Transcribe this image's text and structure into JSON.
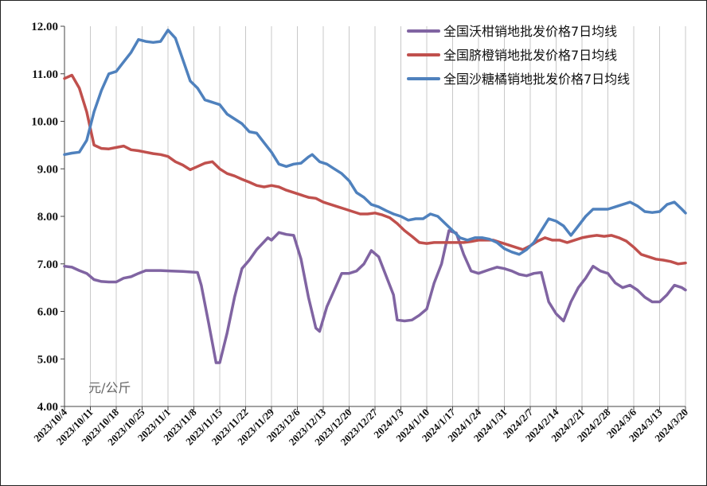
{
  "chart_data": {
    "type": "line",
    "unit_label": "元/公斤",
    "ylim": [
      4.0,
      12.0
    ],
    "yticks": [
      "4.00",
      "5.00",
      "6.00",
      "7.00",
      "8.00",
      "9.00",
      "10.00",
      "11.00",
      "12.00"
    ],
    "grid": "vertical",
    "legend_position": "top-right",
    "x_tick_labels": [
      "2023/10/4",
      "2023/10/11",
      "2023/10/18",
      "2023/10/25",
      "2023/11/1",
      "2023/11/8",
      "2023/11/15",
      "2023/11/22",
      "2023/11/29",
      "2023/12/6",
      "2023/12/13",
      "2023/12/20",
      "2023/12/27",
      "2024/1/3",
      "2024/1/10",
      "2024/1/17",
      "2024/1/24",
      "2024/1/31",
      "2024/2/7",
      "2024/2/14",
      "2024/2/21",
      "2024/2/28",
      "2024/3/6",
      "2024/3/13",
      "2024/3/20"
    ],
    "x_start": "2023/10/4",
    "x_end": "2024/3/20",
    "series": [
      {
        "name": "全国沃柑销地批发价格7日均线",
        "color": "#8064a2",
        "points": [
          [
            "2023/10/4",
            6.95
          ],
          [
            "2023/10/6",
            6.93
          ],
          [
            "2023/10/8",
            6.86
          ],
          [
            "2023/10/10",
            6.8
          ],
          [
            "2023/10/12",
            6.67
          ],
          [
            "2023/10/14",
            6.63
          ],
          [
            "2023/10/16",
            6.62
          ],
          [
            "2023/10/18",
            6.62
          ],
          [
            "2023/10/20",
            6.7
          ],
          [
            "2023/10/22",
            6.73
          ],
          [
            "2023/10/24",
            6.8
          ],
          [
            "2023/10/26",
            6.86
          ],
          [
            "2023/10/28",
            6.86
          ],
          [
            "2023/10/30",
            6.86
          ],
          [
            "2023/11/2",
            6.85
          ],
          [
            "2023/11/5",
            6.84
          ],
          [
            "2023/11/7",
            6.83
          ],
          [
            "2023/11/9",
            6.82
          ],
          [
            "2023/11/10",
            6.55
          ],
          [
            "2023/11/12",
            5.75
          ],
          [
            "2023/11/14",
            4.92
          ],
          [
            "2023/11/15",
            4.92
          ],
          [
            "2023/11/17",
            5.55
          ],
          [
            "2023/11/19",
            6.3
          ],
          [
            "2023/11/21",
            6.9
          ],
          [
            "2023/11/23",
            7.08
          ],
          [
            "2023/11/25",
            7.3
          ],
          [
            "2023/11/28",
            7.55
          ],
          [
            "2023/11/29",
            7.5
          ],
          [
            "2023/12/1",
            7.66
          ],
          [
            "2023/12/3",
            7.62
          ],
          [
            "2023/12/5",
            7.6
          ],
          [
            "2023/12/7",
            7.1
          ],
          [
            "2023/12/9",
            6.3
          ],
          [
            "2023/12/11",
            5.65
          ],
          [
            "2023/12/12",
            5.58
          ],
          [
            "2023/12/14",
            6.1
          ],
          [
            "2023/12/16",
            6.45
          ],
          [
            "2023/12/18",
            6.8
          ],
          [
            "2023/12/20",
            6.8
          ],
          [
            "2023/12/22",
            6.85
          ],
          [
            "2023/12/24",
            7.0
          ],
          [
            "2023/12/26",
            7.28
          ],
          [
            "2023/12/28",
            7.15
          ],
          [
            "2023/12/30",
            6.75
          ],
          [
            "2024/1/1",
            6.35
          ],
          [
            "2024/1/2",
            5.82
          ],
          [
            "2024/1/4",
            5.8
          ],
          [
            "2024/1/6",
            5.82
          ],
          [
            "2024/1/8",
            5.92
          ],
          [
            "2024/1/10",
            6.05
          ],
          [
            "2024/1/12",
            6.6
          ],
          [
            "2024/1/14",
            7.0
          ],
          [
            "2024/1/16",
            7.7
          ],
          [
            "2024/1/18",
            7.65
          ],
          [
            "2024/1/20",
            7.2
          ],
          [
            "2024/1/22",
            6.85
          ],
          [
            "2024/1/24",
            6.8
          ],
          [
            "2024/1/27",
            6.88
          ],
          [
            "2024/1/29",
            6.93
          ],
          [
            "2024/1/31",
            6.9
          ],
          [
            "2024/2/2",
            6.85
          ],
          [
            "2024/2/4",
            6.78
          ],
          [
            "2024/2/6",
            6.75
          ],
          [
            "2024/2/8",
            6.8
          ],
          [
            "2024/2/10",
            6.82
          ],
          [
            "2024/2/12",
            6.2
          ],
          [
            "2024/2/14",
            5.95
          ],
          [
            "2024/2/16",
            5.8
          ],
          [
            "2024/2/18",
            6.2
          ],
          [
            "2024/2/20",
            6.5
          ],
          [
            "2024/2/22",
            6.7
          ],
          [
            "2024/2/24",
            6.95
          ],
          [
            "2024/2/26",
            6.85
          ],
          [
            "2024/2/28",
            6.8
          ],
          [
            "2024/3/1",
            6.6
          ],
          [
            "2024/3/3",
            6.5
          ],
          [
            "2024/3/5",
            6.55
          ],
          [
            "2024/3/7",
            6.45
          ],
          [
            "2024/3/9",
            6.3
          ],
          [
            "2024/3/11",
            6.2
          ],
          [
            "2024/3/13",
            6.2
          ],
          [
            "2024/3/15",
            6.35
          ],
          [
            "2024/3/17",
            6.55
          ],
          [
            "2024/3/19",
            6.5
          ],
          [
            "2024/3/20",
            6.45
          ]
        ]
      },
      {
        "name": "全国脐橙销地批发价格7日均线",
        "color": "#c0504d",
        "points": [
          [
            "2023/10/4",
            10.9
          ],
          [
            "2023/10/6",
            10.97
          ],
          [
            "2023/10/8",
            10.7
          ],
          [
            "2023/10/10",
            10.2
          ],
          [
            "2023/10/12",
            9.5
          ],
          [
            "2023/10/14",
            9.43
          ],
          [
            "2023/10/16",
            9.42
          ],
          [
            "2023/10/18",
            9.45
          ],
          [
            "2023/10/20",
            9.48
          ],
          [
            "2023/10/22",
            9.4
          ],
          [
            "2023/10/24",
            9.38
          ],
          [
            "2023/10/26",
            9.35
          ],
          [
            "2023/10/28",
            9.32
          ],
          [
            "2023/10/30",
            9.3
          ],
          [
            "2023/11/1",
            9.26
          ],
          [
            "2023/11/3",
            9.15
          ],
          [
            "2023/11/5",
            9.08
          ],
          [
            "2023/11/7",
            8.98
          ],
          [
            "2023/11/9",
            9.05
          ],
          [
            "2023/11/11",
            9.12
          ],
          [
            "2023/11/13",
            9.15
          ],
          [
            "2023/11/15",
            9.0
          ],
          [
            "2023/11/17",
            8.9
          ],
          [
            "2023/11/19",
            8.85
          ],
          [
            "2023/11/21",
            8.78
          ],
          [
            "2023/11/23",
            8.72
          ],
          [
            "2023/11/25",
            8.65
          ],
          [
            "2023/11/27",
            8.62
          ],
          [
            "2023/11/29",
            8.65
          ],
          [
            "2023/12/1",
            8.62
          ],
          [
            "2023/12/3",
            8.55
          ],
          [
            "2023/12/5",
            8.5
          ],
          [
            "2023/12/7",
            8.45
          ],
          [
            "2023/12/9",
            8.4
          ],
          [
            "2023/12/11",
            8.38
          ],
          [
            "2023/12/13",
            8.3
          ],
          [
            "2023/12/15",
            8.25
          ],
          [
            "2023/12/17",
            8.2
          ],
          [
            "2023/12/19",
            8.15
          ],
          [
            "2023/12/21",
            8.1
          ],
          [
            "2023/12/23",
            8.05
          ],
          [
            "2023/12/25",
            8.05
          ],
          [
            "2023/12/27",
            8.07
          ],
          [
            "2023/12/29",
            8.03
          ],
          [
            "2023/12/31",
            7.97
          ],
          [
            "2024/1/2",
            7.85
          ],
          [
            "2024/1/4",
            7.7
          ],
          [
            "2024/1/6",
            7.58
          ],
          [
            "2024/1/8",
            7.45
          ],
          [
            "2024/1/10",
            7.43
          ],
          [
            "2024/1/12",
            7.45
          ],
          [
            "2024/1/14",
            7.45
          ],
          [
            "2024/1/16",
            7.45
          ],
          [
            "2024/1/18",
            7.45
          ],
          [
            "2024/1/20",
            7.45
          ],
          [
            "2024/1/22",
            7.47
          ],
          [
            "2024/1/24",
            7.5
          ],
          [
            "2024/1/26",
            7.5
          ],
          [
            "2024/1/28",
            7.5
          ],
          [
            "2024/1/30",
            7.45
          ],
          [
            "2024/2/1",
            7.4
          ],
          [
            "2024/2/3",
            7.35
          ],
          [
            "2024/2/5",
            7.3
          ],
          [
            "2024/2/7",
            7.38
          ],
          [
            "2024/2/9",
            7.48
          ],
          [
            "2024/2/11",
            7.55
          ],
          [
            "2024/2/13",
            7.5
          ],
          [
            "2024/2/15",
            7.5
          ],
          [
            "2024/2/17",
            7.45
          ],
          [
            "2024/2/19",
            7.5
          ],
          [
            "2024/2/21",
            7.55
          ],
          [
            "2024/2/23",
            7.58
          ],
          [
            "2024/2/25",
            7.6
          ],
          [
            "2024/2/27",
            7.58
          ],
          [
            "2024/2/29",
            7.6
          ],
          [
            "2024/3/2",
            7.55
          ],
          [
            "2024/3/4",
            7.48
          ],
          [
            "2024/3/6",
            7.35
          ],
          [
            "2024/3/8",
            7.2
          ],
          [
            "2024/3/10",
            7.15
          ],
          [
            "2024/3/12",
            7.1
          ],
          [
            "2024/3/14",
            7.08
          ],
          [
            "2024/3/16",
            7.05
          ],
          [
            "2024/3/18",
            7.0
          ],
          [
            "2024/3/20",
            7.02
          ]
        ]
      },
      {
        "name": "全国沙糖橘销地批发价格7日均线",
        "color": "#4f81bd",
        "points": [
          [
            "2023/10/4",
            9.3
          ],
          [
            "2023/10/6",
            9.33
          ],
          [
            "2023/10/8",
            9.35
          ],
          [
            "2023/10/10",
            9.6
          ],
          [
            "2023/10/12",
            10.2
          ],
          [
            "2023/10/14",
            10.65
          ],
          [
            "2023/10/16",
            11.0
          ],
          [
            "2023/10/18",
            11.05
          ],
          [
            "2023/10/20",
            11.25
          ],
          [
            "2023/10/22",
            11.45
          ],
          [
            "2023/10/24",
            11.72
          ],
          [
            "2023/10/26",
            11.68
          ],
          [
            "2023/10/28",
            11.66
          ],
          [
            "2023/10/30",
            11.68
          ],
          [
            "2023/11/1",
            11.92
          ],
          [
            "2023/11/3",
            11.75
          ],
          [
            "2023/11/5",
            11.3
          ],
          [
            "2023/11/7",
            10.85
          ],
          [
            "2023/11/9",
            10.7
          ],
          [
            "2023/11/11",
            10.45
          ],
          [
            "2023/11/13",
            10.4
          ],
          [
            "2023/11/15",
            10.35
          ],
          [
            "2023/11/17",
            10.15
          ],
          [
            "2023/11/19",
            10.05
          ],
          [
            "2023/11/21",
            9.95
          ],
          [
            "2023/11/23",
            9.78
          ],
          [
            "2023/11/25",
            9.75
          ],
          [
            "2023/11/27",
            9.55
          ],
          [
            "2023/11/29",
            9.35
          ],
          [
            "2023/12/1",
            9.1
          ],
          [
            "2023/12/3",
            9.05
          ],
          [
            "2023/12/5",
            9.1
          ],
          [
            "2023/12/7",
            9.12
          ],
          [
            "2023/12/9",
            9.25
          ],
          [
            "2023/12/10",
            9.3
          ],
          [
            "2023/12/12",
            9.15
          ],
          [
            "2023/12/14",
            9.1
          ],
          [
            "2023/12/16",
            9.0
          ],
          [
            "2023/12/18",
            8.9
          ],
          [
            "2023/12/20",
            8.75
          ],
          [
            "2023/12/22",
            8.5
          ],
          [
            "2023/12/24",
            8.4
          ],
          [
            "2023/12/26",
            8.25
          ],
          [
            "2023/12/28",
            8.2
          ],
          [
            "2023/12/30",
            8.12
          ],
          [
            "2024/1/1",
            8.05
          ],
          [
            "2024/1/3",
            8.0
          ],
          [
            "2024/1/5",
            7.92
          ],
          [
            "2024/1/7",
            7.95
          ],
          [
            "2024/1/9",
            7.95
          ],
          [
            "2024/1/11",
            8.05
          ],
          [
            "2024/1/13",
            8.0
          ],
          [
            "2024/1/15",
            7.85
          ],
          [
            "2024/1/17",
            7.7
          ],
          [
            "2024/1/19",
            7.55
          ],
          [
            "2024/1/21",
            7.5
          ],
          [
            "2024/1/23",
            7.55
          ],
          [
            "2024/1/25",
            7.55
          ],
          [
            "2024/1/27",
            7.52
          ],
          [
            "2024/1/29",
            7.45
          ],
          [
            "2024/1/31",
            7.32
          ],
          [
            "2024/2/2",
            7.25
          ],
          [
            "2024/2/4",
            7.2
          ],
          [
            "2024/2/6",
            7.3
          ],
          [
            "2024/2/8",
            7.45
          ],
          [
            "2024/2/10",
            7.7
          ],
          [
            "2024/2/12",
            7.95
          ],
          [
            "2024/2/14",
            7.9
          ],
          [
            "2024/2/16",
            7.8
          ],
          [
            "2024/2/18",
            7.6
          ],
          [
            "2024/2/20",
            7.8
          ],
          [
            "2024/2/22",
            8.0
          ],
          [
            "2024/2/24",
            8.15
          ],
          [
            "2024/2/26",
            8.15
          ],
          [
            "2024/2/28",
            8.15
          ],
          [
            "2024/3/1",
            8.2
          ],
          [
            "2024/3/3",
            8.25
          ],
          [
            "2024/3/5",
            8.3
          ],
          [
            "2024/3/7",
            8.22
          ],
          [
            "2024/3/9",
            8.1
          ],
          [
            "2024/3/11",
            8.08
          ],
          [
            "2024/3/13",
            8.1
          ],
          [
            "2024/3/15",
            8.25
          ],
          [
            "2024/3/17",
            8.3
          ],
          [
            "2024/3/19",
            8.15
          ],
          [
            "2024/3/20",
            8.07
          ]
        ]
      }
    ]
  }
}
